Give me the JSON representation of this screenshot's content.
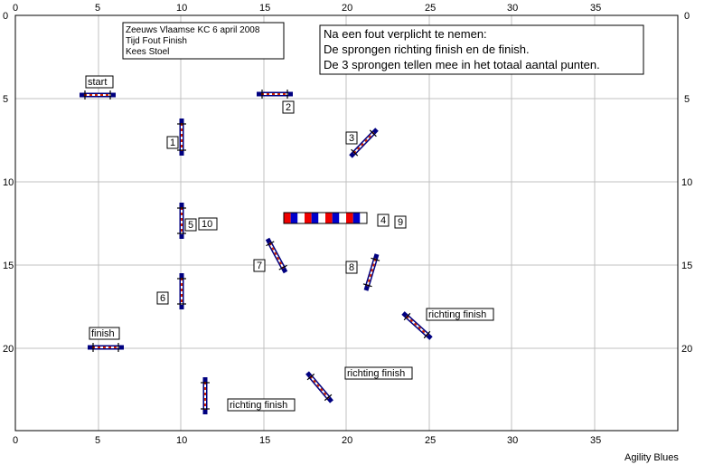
{
  "axis": {
    "x_ticks": [
      "0",
      "5",
      "10",
      "15",
      "20",
      "25",
      "30",
      "35"
    ],
    "y_ticks": [
      "0",
      "5",
      "10",
      "15",
      "20"
    ]
  },
  "info_box_1": {
    "lines": [
      "Zeeuws Vlaamse KC 6 april 2008",
      "Tijd Fout Finish",
      "Kees Stoel"
    ]
  },
  "info_box_2": {
    "lines": [
      "Na een fout verplicht te nemen:",
      "De sprongen richting finish en de finish.",
      "De 3 sprongen tellen mee in het totaal aantal punten."
    ]
  },
  "labels": {
    "start": "start",
    "finish": "finish",
    "n1": "1",
    "n2": "2",
    "n3": "3",
    "n4": "4",
    "n5": "5",
    "n6": "6",
    "n7": "7",
    "n8": "8",
    "n9": "9",
    "n10": "10",
    "rf1": "richting finish",
    "rf2": "richting finish",
    "rf3": "richting finish"
  },
  "credit": "Agility Blues",
  "colors": {
    "grid": "#c0c0c0",
    "pole": "#000080",
    "bar": "#cc2200",
    "bar_alt": "#ffffff",
    "tunnel_red": "#ee0000",
    "tunnel_blue": "#0000cc"
  }
}
